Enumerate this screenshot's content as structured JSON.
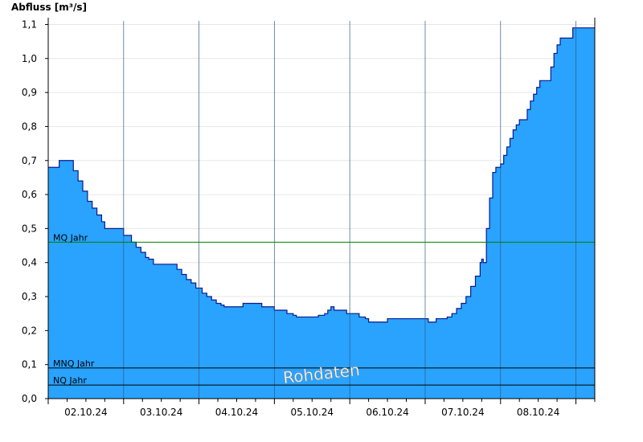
{
  "chart_data": {
    "type": "area",
    "ylabel": "Abfluss [m³/s]",
    "ylim": [
      0,
      1.12
    ],
    "yticks": [
      "0,0",
      "0,1",
      "0,2",
      "0,3",
      "0,4",
      "0,5",
      "0,6",
      "0,7",
      "0,8",
      "0,9",
      "1,0",
      "1,1"
    ],
    "ytick_values": [
      0,
      0.1,
      0.2,
      0.3,
      0.4,
      0.5,
      0.6,
      0.7,
      0.8,
      0.9,
      1.0,
      1.1
    ],
    "xlim": [
      "01.10.24 00:00",
      "08.10.24 06:00"
    ],
    "x_tick_labels": [
      "02.10.24",
      "03.10.24",
      "04.10.24",
      "05.10.24",
      "06.10.24",
      "07.10.24",
      "08.10.24"
    ],
    "x_label_values": [
      "01.10.24 12:00",
      "02.10.24 12:00",
      "03.10.24 12:00",
      "04.10.24 12:00",
      "05.10.24 12:00",
      "06.10.24 12:00",
      "07.10.24 12:00"
    ],
    "day_lines": [
      "02.10.24 00:00",
      "03.10.24 00:00",
      "04.10.24 00:00",
      "05.10.24 00:00",
      "06.10.24 00:00",
      "07.10.24 00:00",
      "08.10.24 00:00"
    ],
    "grid": true,
    "series": [
      {
        "color": "#29a3fe",
        "points": [
          [
            "01.10.24 00:00",
            0.68
          ],
          [
            "01.10.24 03:00",
            0.68
          ],
          [
            "01.10.24 03:30",
            0.7
          ],
          [
            "01.10.24 06:30",
            0.7
          ],
          [
            "01.10.24 08:00",
            0.67
          ],
          [
            "01.10.24 09:30",
            0.64
          ],
          [
            "01.10.24 11:00",
            0.61
          ],
          [
            "01.10.24 12:30",
            0.58
          ],
          [
            "01.10.24 14:00",
            0.56
          ],
          [
            "01.10.24 15:30",
            0.54
          ],
          [
            "01.10.24 17:00",
            0.52
          ],
          [
            "01.10.24 18:00",
            0.5
          ],
          [
            "01.10.24 23:00",
            0.5
          ],
          [
            "02.10.24 00:00",
            0.48
          ],
          [
            "02.10.24 01:30",
            0.48
          ],
          [
            "02.10.24 02:30",
            0.46
          ],
          [
            "02.10.24 04:00",
            0.445
          ],
          [
            "02.10.24 05:30",
            0.43
          ],
          [
            "02.10.24 07:00",
            0.415
          ],
          [
            "02.10.24 08:00",
            0.41
          ],
          [
            "02.10.24 09:30",
            0.395
          ],
          [
            "02.10.24 15:30",
            0.395
          ],
          [
            "02.10.24 17:00",
            0.38
          ],
          [
            "02.10.24 18:30",
            0.365
          ],
          [
            "02.10.24 20:00",
            0.35
          ],
          [
            "02.10.24 21:30",
            0.34
          ],
          [
            "02.10.24 23:00",
            0.325
          ],
          [
            "03.10.24 01:00",
            0.31
          ],
          [
            "03.10.24 02:30",
            0.3
          ],
          [
            "03.10.24 04:00",
            0.29
          ],
          [
            "03.10.24 05:30",
            0.28
          ],
          [
            "03.10.24 07:00",
            0.275
          ],
          [
            "03.10.24 08:00",
            0.27
          ],
          [
            "03.10.24 13:00",
            0.27
          ],
          [
            "03.10.24 14:00",
            0.28
          ],
          [
            "03.10.24 19:00",
            0.28
          ],
          [
            "03.10.24 20:00",
            0.27
          ],
          [
            "03.10.24 23:00",
            0.27
          ],
          [
            "04.10.24 00:00",
            0.26
          ],
          [
            "04.10.24 03:00",
            0.26
          ],
          [
            "04.10.24 04:00",
            0.25
          ],
          [
            "04.10.24 06:00",
            0.245
          ],
          [
            "04.10.24 07:00",
            0.24
          ],
          [
            "04.10.24 13:00",
            0.24
          ],
          [
            "04.10.24 14:00",
            0.245
          ],
          [
            "04.10.24 16:00",
            0.25
          ],
          [
            "04.10.24 17:00",
            0.26
          ],
          [
            "04.10.24 18:00",
            0.27
          ],
          [
            "04.10.24 19:00",
            0.26
          ],
          [
            "04.10.24 22:00",
            0.26
          ],
          [
            "04.10.24 23:00",
            0.25
          ],
          [
            "05.10.24 02:00",
            0.25
          ],
          [
            "05.10.24 03:00",
            0.24
          ],
          [
            "05.10.24 05:00",
            0.235
          ],
          [
            "05.10.24 06:00",
            0.225
          ],
          [
            "05.10.24 11:00",
            0.225
          ],
          [
            "05.10.24 12:00",
            0.235
          ],
          [
            "05.10.24 23:00",
            0.235
          ],
          [
            "06.10.24 01:00",
            0.225
          ],
          [
            "06.10.24 02:30",
            0.225
          ],
          [
            "06.10.24 03:30",
            0.235
          ],
          [
            "06.10.24 05:30",
            0.235
          ],
          [
            "06.10.24 07:00",
            0.24
          ],
          [
            "06.10.24 08:30",
            0.25
          ],
          [
            "06.10.24 10:00",
            0.265
          ],
          [
            "06.10.24 11:30",
            0.28
          ],
          [
            "06.10.24 13:00",
            0.3
          ],
          [
            "06.10.24 14:30",
            0.33
          ],
          [
            "06.10.24 16:00",
            0.36
          ],
          [
            "06.10.24 17:30",
            0.4
          ],
          [
            "06.10.24 18:00",
            0.41
          ],
          [
            "06.10.24 18:30",
            0.4
          ],
          [
            "06.10.24 19:30",
            0.5
          ],
          [
            "06.10.24 20:30",
            0.59
          ],
          [
            "06.10.24 21:30",
            0.665
          ],
          [
            "06.10.24 22:30",
            0.68
          ],
          [
            "07.10.24 00:00",
            0.69
          ],
          [
            "07.10.24 01:00",
            0.715
          ],
          [
            "07.10.24 02:00",
            0.74
          ],
          [
            "07.10.24 03:00",
            0.765
          ],
          [
            "07.10.24 04:00",
            0.79
          ],
          [
            "07.10.24 05:00",
            0.805
          ],
          [
            "07.10.24 06:00",
            0.82
          ],
          [
            "07.10.24 07:30",
            0.82
          ],
          [
            "07.10.24 08:30",
            0.85
          ],
          [
            "07.10.24 09:30",
            0.875
          ],
          [
            "07.10.24 10:30",
            0.895
          ],
          [
            "07.10.24 11:30",
            0.915
          ],
          [
            "07.10.24 12:30",
            0.935
          ],
          [
            "07.10.24 15:00",
            0.935
          ],
          [
            "07.10.24 16:00",
            0.975
          ],
          [
            "07.10.24 17:00",
            1.015
          ],
          [
            "07.10.24 18:00",
            1.04
          ],
          [
            "07.10.24 19:00",
            1.06
          ],
          [
            "07.10.24 22:00",
            1.06
          ],
          [
            "07.10.24 23:00",
            1.09
          ],
          [
            "08.10.24 00:30",
            1.09
          ]
        ]
      }
    ],
    "reference_lines": [
      {
        "label": "MQ Jahr",
        "value": 0.46,
        "color": "#007f00"
      },
      {
        "label": "MNQ Jahr",
        "value": 0.09,
        "color": "#000000"
      },
      {
        "label": "NQ Jahr",
        "value": 0.04,
        "color": "#000000"
      }
    ],
    "annotation": "Rohdaten"
  }
}
